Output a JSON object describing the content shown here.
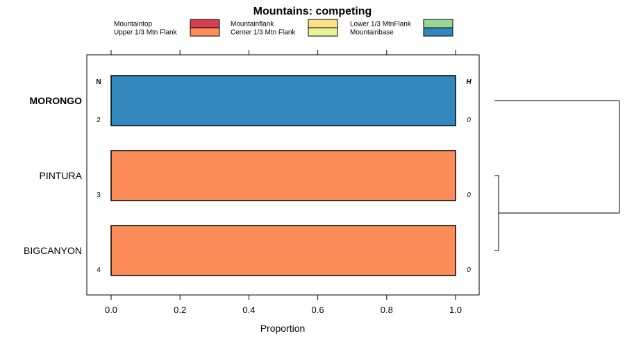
{
  "chart_data": {
    "type": "bar",
    "orientation": "horizontal",
    "stacked": true,
    "title": "Mountains: competing",
    "xlabel": "Proportion",
    "ylabel": "",
    "xlim": [
      0,
      1
    ],
    "x_ticks": [
      "0.0",
      "0.2",
      "0.4",
      "0.6",
      "0.8",
      "1.0"
    ],
    "x_tick_values": [
      0,
      0.2,
      0.4,
      0.6,
      0.8,
      1.0
    ],
    "legend": [
      {
        "label": "Mountaintop",
        "color": "#d53e4f"
      },
      {
        "label": "Upper 1/3 Mtn Flank",
        "color": "#fc8d59"
      },
      {
        "label": "Mountainflank",
        "color": "#fee08b"
      },
      {
        "label": "Center 1/3 Mtn Flank",
        "color": "#e6f598"
      },
      {
        "label": "Lower 1/3 MtnFlank",
        "color": "#99d594"
      },
      {
        "label": "Mountainbase",
        "color": "#3288bd"
      }
    ],
    "left_header": "N",
    "right_header": "H",
    "categories": [
      {
        "name": "MORONGO",
        "bold": true,
        "n": "2",
        "h": "0",
        "segments": [
          {
            "series": "Mountainbase",
            "value": 1.0,
            "color": "#3288bd"
          }
        ]
      },
      {
        "name": "PINTURA",
        "bold": false,
        "n": "3",
        "h": "0",
        "segments": [
          {
            "series": "Upper 1/3 Mtn Flank",
            "value": 1.0,
            "color": "#fc8d59"
          }
        ]
      },
      {
        "name": "BIGCANYON",
        "bold": false,
        "n": "4",
        "h": "0",
        "segments": [
          {
            "series": "Upper 1/3 Mtn Flank",
            "value": 1.0,
            "color": "#fc8d59"
          }
        ]
      }
    ],
    "dendrogram": "clusters PINTURA and BIGCANYON, then joins MORONGO"
  }
}
